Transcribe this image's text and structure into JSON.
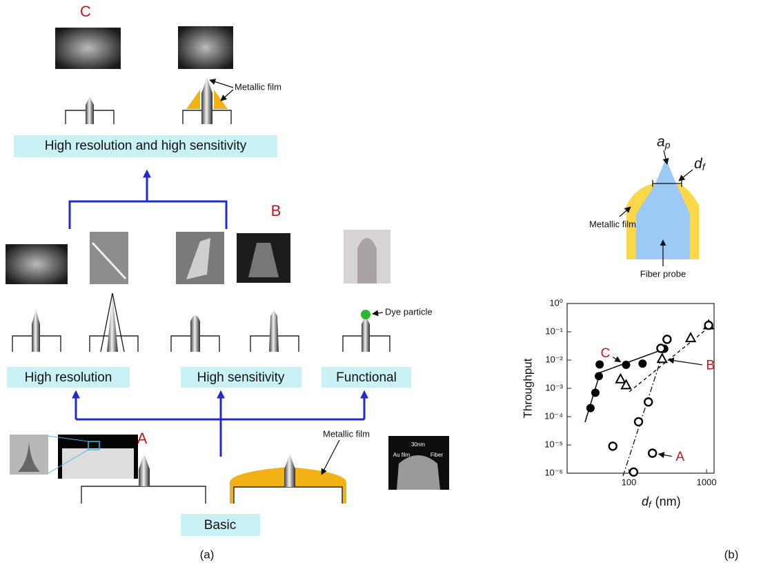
{
  "panel_a": {
    "top_label": "C",
    "top_film": "Metallic film",
    "box_top": "High resolution and high sensitivity",
    "mid_label": "B",
    "dye": "Dye particle",
    "box_res": "High resolution",
    "box_sens": "High sensitivity",
    "box_func": "Functional",
    "base_label": "A",
    "base_film": "Metallic film",
    "sem_scale": "30nm",
    "sem_au": "Au film",
    "sem_fiber": "Fiber",
    "box_basic": "Basic",
    "caption": "(a)"
  },
  "panel_b": {
    "ap": {
      "symbol": "a",
      "subscript": "p"
    },
    "df": {
      "symbol": "d",
      "subscript": "f"
    },
    "film": "Metallic film",
    "fiber": "Fiber probe",
    "caption": "(b)"
  },
  "chart_data": {
    "type": "scatter",
    "xlog": true,
    "ylog": true,
    "y_label": "Throughput",
    "x_label": {
      "symbol": "d",
      "subscript": "f",
      "unit": "(nm)"
    },
    "xlim": [
      16,
      1250
    ],
    "ylim": [
      1e-06,
      1
    ],
    "xticks": [
      100,
      1000
    ],
    "yticks": [
      {
        "value": 1,
        "label": "10⁰"
      },
      {
        "value": 0.1,
        "label": "10⁻¹"
      },
      {
        "value": 0.01,
        "label": "10⁻²"
      },
      {
        "value": 0.001,
        "label": "10⁻³"
      },
      {
        "value": 0.0001,
        "label": "10⁻⁴"
      },
      {
        "value": 1e-05,
        "label": "10⁻⁵"
      },
      {
        "value": 1e-06,
        "label": "10⁻⁶"
      }
    ],
    "series": [
      {
        "name": "C",
        "marker": "filled-circle",
        "color": "#000000",
        "x": [
          32,
          37,
          41,
          42,
          92,
          150,
          285
        ],
        "values": [
          0.0002,
          0.0007,
          0.0027,
          0.007,
          0.0068,
          0.0075,
          0.025
        ]
      },
      {
        "name": "B",
        "marker": "triangle",
        "color": "#000000",
        "x": [
          78,
          92,
          268,
          624,
          1064
        ],
        "values": [
          0.0021,
          0.0013,
          0.011,
          0.06,
          0.17
        ]
      },
      {
        "name": "A",
        "marker": "open-circle",
        "color": "#000000",
        "x": [
          62,
          115,
          133,
          178,
          201,
          258,
          310,
          1064
        ],
        "values": [
          9e-06,
          1.1e-06,
          6.6e-05,
          0.00033,
          5.1e-06,
          0.026,
          0.054,
          0.17
        ]
      }
    ]
  }
}
